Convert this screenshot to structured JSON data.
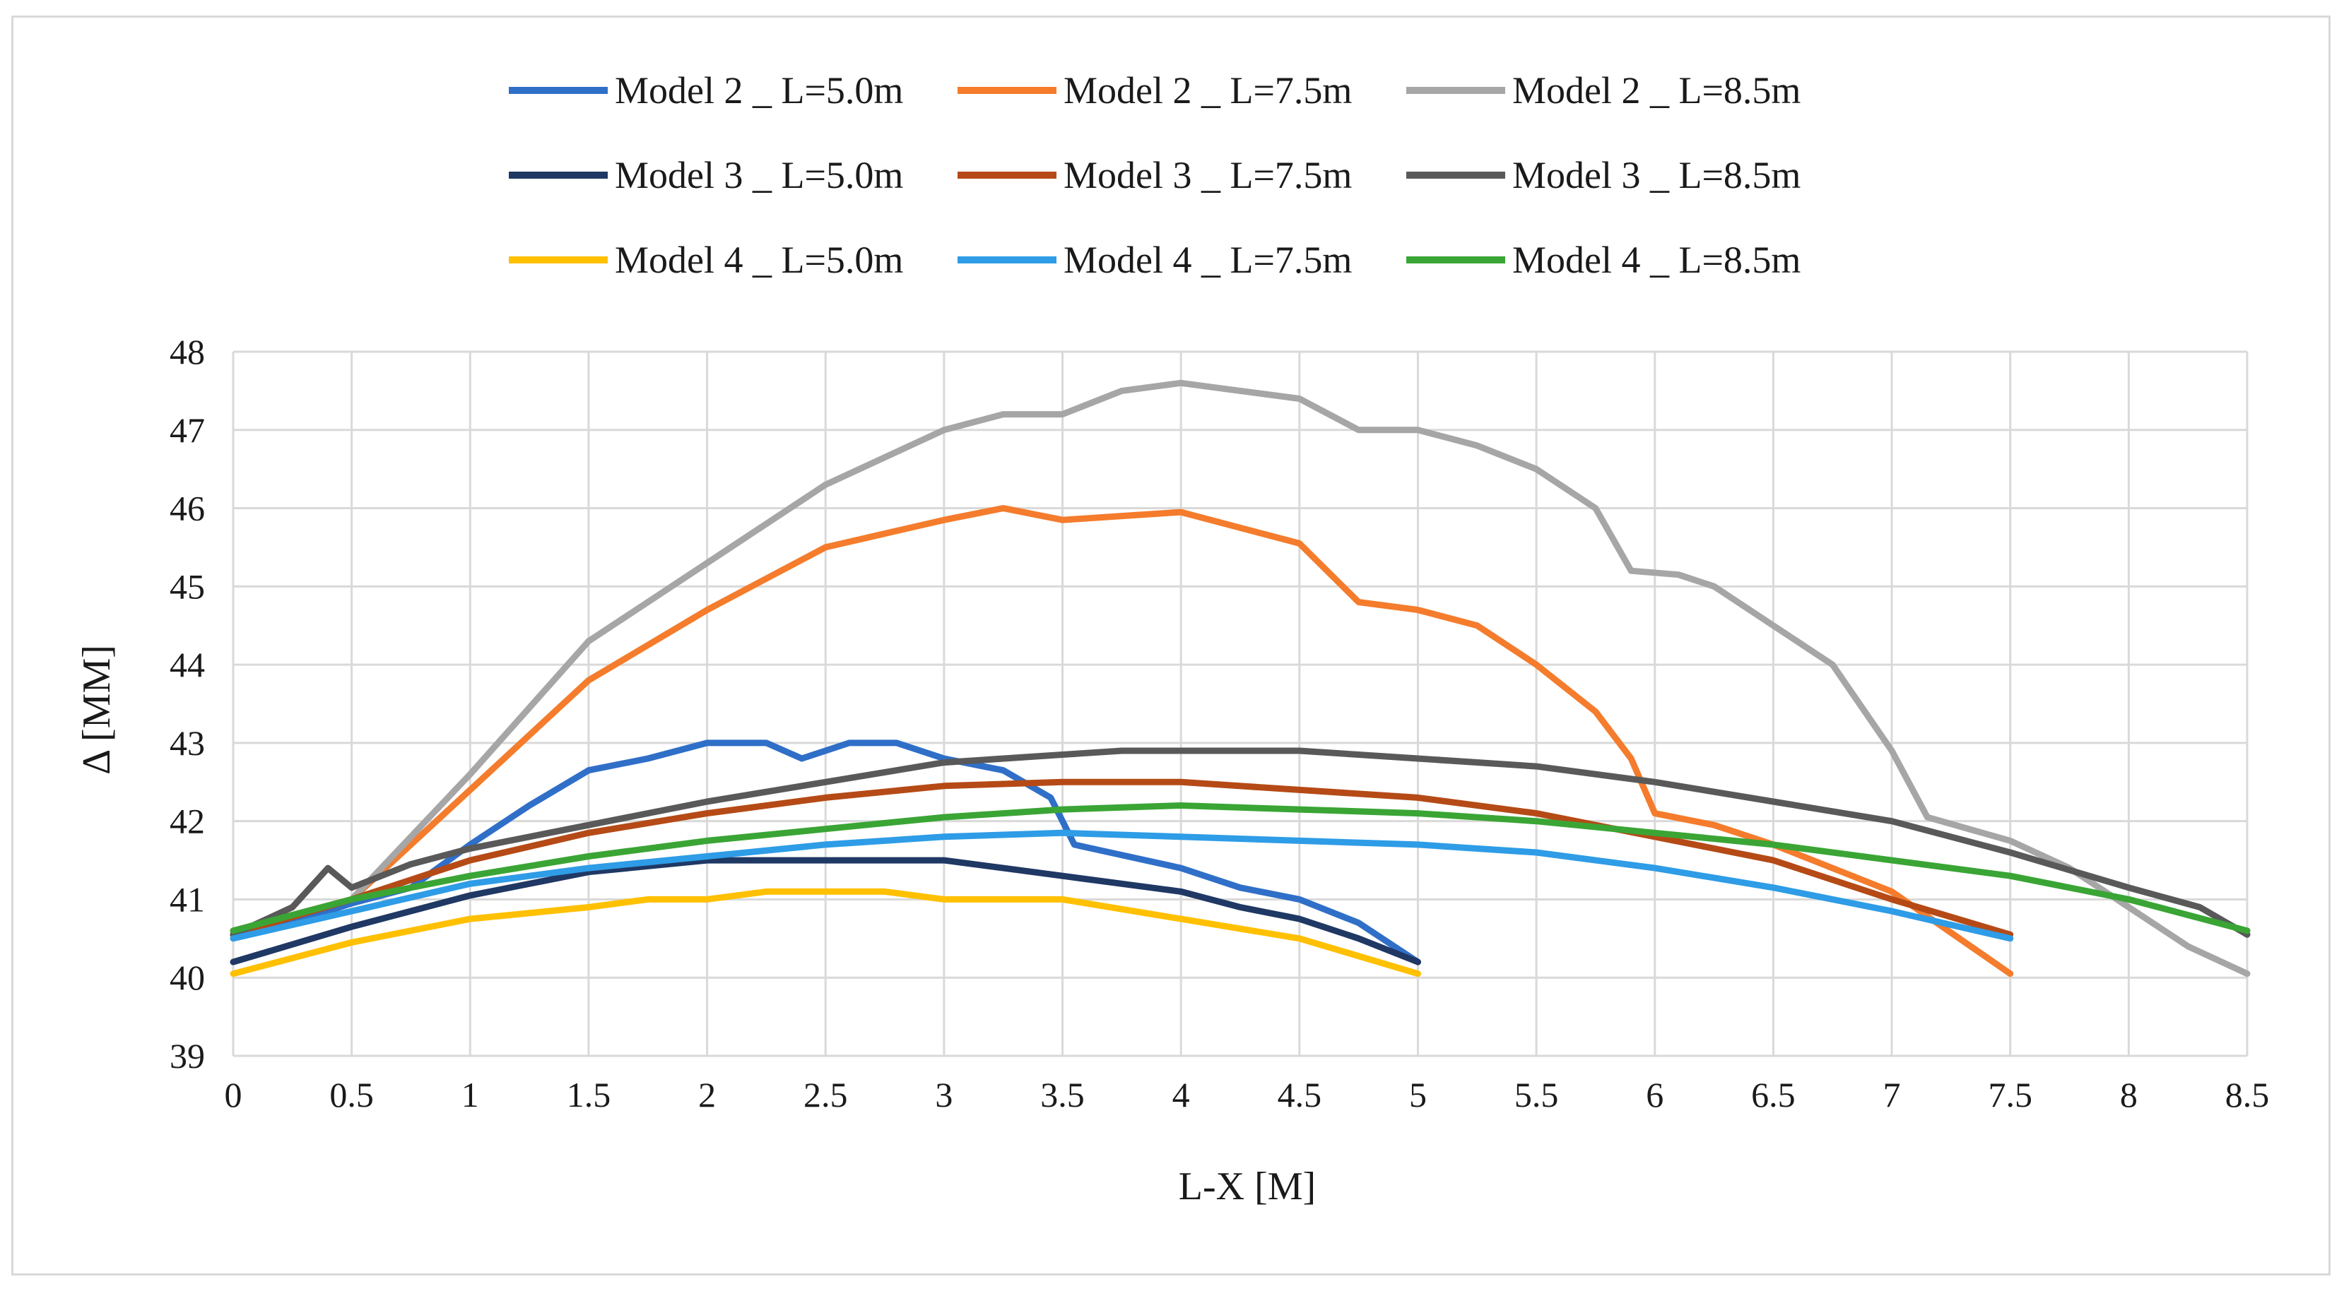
{
  "chart_data": {
    "type": "line",
    "title": "",
    "xlabel": "L-X [M]",
    "ylabel": "Δ [MM]",
    "xlim": [
      0,
      8.5
    ],
    "ylim": [
      39,
      48
    ],
    "x_ticks": [
      "0",
      "0.5",
      "1",
      "1.5",
      "2",
      "2.5",
      "3",
      "3.5",
      "4",
      "4.5",
      "5",
      "5.5",
      "6",
      "6.5",
      "7",
      "7.5",
      "8",
      "8.5"
    ],
    "y_ticks": [
      "39",
      "40",
      "41",
      "42",
      "43",
      "44",
      "45",
      "46",
      "47",
      "48"
    ],
    "grid": true,
    "legend_position": "top",
    "series": [
      {
        "name": "Model 2 _ L=5.0m",
        "color": "#2f6fc8",
        "points": [
          [
            0,
            40.55
          ],
          [
            0.25,
            40.7
          ],
          [
            0.5,
            40.95
          ],
          [
            0.75,
            41.15
          ],
          [
            1,
            41.7
          ],
          [
            1.25,
            42.2
          ],
          [
            1.5,
            42.65
          ],
          [
            1.75,
            42.8
          ],
          [
            2,
            43.0
          ],
          [
            2.25,
            43.0
          ],
          [
            2.4,
            42.8
          ],
          [
            2.6,
            43.0
          ],
          [
            2.8,
            43.0
          ],
          [
            3,
            42.8
          ],
          [
            3.25,
            42.65
          ],
          [
            3.45,
            42.3
          ],
          [
            3.55,
            41.7
          ],
          [
            3.7,
            41.6
          ],
          [
            4,
            41.4
          ],
          [
            4.25,
            41.15
          ],
          [
            4.5,
            41.0
          ],
          [
            4.75,
            40.7
          ],
          [
            5,
            40.2
          ]
        ]
      },
      {
        "name": "Model 2 _ L=7.5m",
        "color": "#f47c2c",
        "points": [
          [
            0,
            40.6
          ],
          [
            0.5,
            41.0
          ],
          [
            1,
            42.4
          ],
          [
            1.5,
            43.8
          ],
          [
            2,
            44.7
          ],
          [
            2.5,
            45.5
          ],
          [
            3,
            45.85
          ],
          [
            3.25,
            46.0
          ],
          [
            3.5,
            45.85
          ],
          [
            3.75,
            45.9
          ],
          [
            4,
            45.95
          ],
          [
            4.25,
            45.75
          ],
          [
            4.5,
            45.55
          ],
          [
            4.75,
            44.8
          ],
          [
            5,
            44.7
          ],
          [
            5.25,
            44.5
          ],
          [
            5.5,
            44.0
          ],
          [
            5.75,
            43.4
          ],
          [
            5.9,
            42.8
          ],
          [
            6,
            42.1
          ],
          [
            6.25,
            41.95
          ],
          [
            6.5,
            41.7
          ],
          [
            7,
            41.1
          ],
          [
            7.5,
            40.05
          ]
        ]
      },
      {
        "name": "Model 2 _ L=8.5m",
        "color": "#a6a6a6",
        "points": [
          [
            0,
            40.6
          ],
          [
            0.5,
            41.0
          ],
          [
            1,
            42.6
          ],
          [
            1.5,
            44.3
          ],
          [
            2,
            45.3
          ],
          [
            2.5,
            46.3
          ],
          [
            3,
            47.0
          ],
          [
            3.25,
            47.2
          ],
          [
            3.5,
            47.2
          ],
          [
            3.75,
            47.5
          ],
          [
            4,
            47.6
          ],
          [
            4.25,
            47.5
          ],
          [
            4.5,
            47.4
          ],
          [
            4.75,
            47.0
          ],
          [
            5,
            47.0
          ],
          [
            5.25,
            46.8
          ],
          [
            5.5,
            46.5
          ],
          [
            5.75,
            46.0
          ],
          [
            5.9,
            45.2
          ],
          [
            6.1,
            45.15
          ],
          [
            6.25,
            45.0
          ],
          [
            6.5,
            44.5
          ],
          [
            6.75,
            44.0
          ],
          [
            7,
            42.9
          ],
          [
            7.15,
            42.05
          ],
          [
            7.5,
            41.75
          ],
          [
            7.75,
            41.4
          ],
          [
            8,
            40.9
          ],
          [
            8.25,
            40.4
          ],
          [
            8.5,
            40.05
          ]
        ]
      },
      {
        "name": "Model 3 _ L=5.0m",
        "color": "#1f3864",
        "points": [
          [
            0,
            40.2
          ],
          [
            0.5,
            40.65
          ],
          [
            1,
            41.05
          ],
          [
            1.5,
            41.35
          ],
          [
            2,
            41.5
          ],
          [
            2.5,
            41.5
          ],
          [
            3,
            41.5
          ],
          [
            3.25,
            41.4
          ],
          [
            3.5,
            41.3
          ],
          [
            3.75,
            41.2
          ],
          [
            4,
            41.1
          ],
          [
            4.25,
            40.9
          ],
          [
            4.5,
            40.75
          ],
          [
            4.75,
            40.5
          ],
          [
            5,
            40.2
          ]
        ]
      },
      {
        "name": "Model 3 _ L=7.5m",
        "color": "#b54a16",
        "points": [
          [
            0,
            40.55
          ],
          [
            0.5,
            41.0
          ],
          [
            1,
            41.5
          ],
          [
            1.5,
            41.85
          ],
          [
            2,
            42.1
          ],
          [
            2.5,
            42.3
          ],
          [
            3,
            42.45
          ],
          [
            3.5,
            42.5
          ],
          [
            4,
            42.5
          ],
          [
            4.5,
            42.4
          ],
          [
            5,
            42.3
          ],
          [
            5.5,
            42.1
          ],
          [
            6,
            41.8
          ],
          [
            6.5,
            41.5
          ],
          [
            7,
            41.0
          ],
          [
            7.5,
            40.55
          ]
        ]
      },
      {
        "name": "Model 3 _ L=8.5m",
        "color": "#595959",
        "points": [
          [
            0,
            40.55
          ],
          [
            0.25,
            40.9
          ],
          [
            0.4,
            41.4
          ],
          [
            0.5,
            41.15
          ],
          [
            0.75,
            41.45
          ],
          [
            1,
            41.65
          ],
          [
            1.5,
            41.95
          ],
          [
            2,
            42.25
          ],
          [
            2.5,
            42.5
          ],
          [
            3,
            42.75
          ],
          [
            3.5,
            42.85
          ],
          [
            3.75,
            42.9
          ],
          [
            4.5,
            42.9
          ],
          [
            5,
            42.8
          ],
          [
            5.5,
            42.7
          ],
          [
            6,
            42.5
          ],
          [
            6.5,
            42.25
          ],
          [
            7,
            42.0
          ],
          [
            7.5,
            41.6
          ],
          [
            8,
            41.15
          ],
          [
            8.3,
            40.9
          ],
          [
            8.5,
            40.55
          ]
        ]
      },
      {
        "name": "Model 4 _ L=5.0m",
        "color": "#ffc000",
        "points": [
          [
            0,
            40.05
          ],
          [
            0.5,
            40.45
          ],
          [
            1,
            40.75
          ],
          [
            1.5,
            40.9
          ],
          [
            1.75,
            41.0
          ],
          [
            2,
            41.0
          ],
          [
            2.25,
            41.1
          ],
          [
            2.75,
            41.1
          ],
          [
            3,
            41.0
          ],
          [
            3.5,
            41.0
          ],
          [
            4,
            40.75
          ],
          [
            4.5,
            40.5
          ],
          [
            5,
            40.05
          ]
        ]
      },
      {
        "name": "Model 4 _ L=7.5m",
        "color": "#2e9ce6",
        "points": [
          [
            0,
            40.5
          ],
          [
            0.5,
            40.85
          ],
          [
            1,
            41.2
          ],
          [
            1.5,
            41.4
          ],
          [
            2,
            41.55
          ],
          [
            2.5,
            41.7
          ],
          [
            3,
            41.8
          ],
          [
            3.5,
            41.85
          ],
          [
            4,
            41.8
          ],
          [
            4.5,
            41.75
          ],
          [
            5,
            41.7
          ],
          [
            5.5,
            41.6
          ],
          [
            6,
            41.4
          ],
          [
            6.5,
            41.15
          ],
          [
            7,
            40.85
          ],
          [
            7.5,
            40.5
          ]
        ]
      },
      {
        "name": "Model 4 _ L=8.5m",
        "color": "#3aa535",
        "points": [
          [
            0,
            40.6
          ],
          [
            0.5,
            41.0
          ],
          [
            1,
            41.3
          ],
          [
            1.5,
            41.55
          ],
          [
            2,
            41.75
          ],
          [
            2.5,
            41.9
          ],
          [
            3,
            42.05
          ],
          [
            3.5,
            42.15
          ],
          [
            4,
            42.2
          ],
          [
            4.5,
            42.15
          ],
          [
            5,
            42.1
          ],
          [
            5.5,
            42.0
          ],
          [
            6,
            41.85
          ],
          [
            6.5,
            41.7
          ],
          [
            7,
            41.5
          ],
          [
            7.5,
            41.3
          ],
          [
            8,
            41.0
          ],
          [
            8.5,
            40.6
          ]
        ]
      }
    ]
  }
}
